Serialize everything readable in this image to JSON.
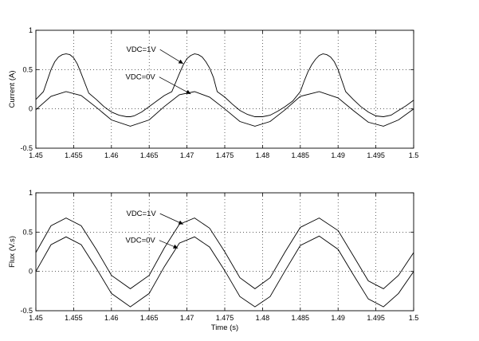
{
  "chart_data": [
    {
      "type": "line",
      "title": "",
      "xlabel": "",
      "ylabel": "Current (A)",
      "xlim": [
        1.45,
        1.5
      ],
      "ylim": [
        -0.5,
        1
      ],
      "grid": true,
      "xticks": [
        "1.45",
        "1.455",
        "1.46",
        "1.465",
        "1.47",
        "1.475",
        "1.48",
        "1.485",
        "1.49",
        "1.495",
        "1.5"
      ],
      "yticks": [
        "-0.5",
        "0",
        "0.5",
        "1"
      ],
      "series": [
        {
          "x": [
            1.45,
            1.451,
            1.452,
            1.4525,
            1.453,
            1.4535,
            1.454,
            1.4545,
            1.455,
            1.4555,
            1.456,
            1.457,
            1.458,
            1.459,
            1.46,
            1.461,
            1.462,
            1.4625,
            1.463,
            1.464,
            1.465,
            1.466,
            1.467,
            1.468,
            1.469,
            1.4695,
            1.47,
            1.4705,
            1.471,
            1.4715,
            1.472,
            1.4725,
            1.473,
            1.4735,
            1.474,
            1.475,
            1.476,
            1.477,
            1.478,
            1.479,
            1.48,
            1.481,
            1.482,
            1.483,
            1.484,
            1.485,
            1.4855,
            1.486,
            1.4865,
            1.487,
            1.4875,
            1.488,
            1.4885,
            1.489,
            1.4895,
            1.49,
            1.491,
            1.492,
            1.493,
            1.494,
            1.495,
            1.496,
            1.497,
            1.498,
            1.499,
            1.5
          ],
          "y": [
            0.12,
            0.22,
            0.5,
            0.6,
            0.66,
            0.69,
            0.7,
            0.69,
            0.65,
            0.57,
            0.45,
            0.2,
            0.12,
            0.03,
            -0.04,
            -0.08,
            -0.1,
            -0.1,
            -0.09,
            -0.04,
            0.03,
            0.1,
            0.17,
            0.22,
            0.45,
            0.56,
            0.64,
            0.68,
            0.7,
            0.69,
            0.66,
            0.6,
            0.52,
            0.4,
            0.22,
            0.15,
            0.06,
            -0.02,
            -0.07,
            -0.1,
            -0.1,
            -0.08,
            -0.03,
            0.03,
            0.1,
            0.22,
            0.35,
            0.47,
            0.56,
            0.63,
            0.68,
            0.7,
            0.69,
            0.66,
            0.6,
            0.5,
            0.22,
            0.12,
            0.03,
            -0.04,
            -0.09,
            -0.1,
            -0.08,
            -0.02,
            0.04,
            0.11
          ]
        },
        {
          "x": [
            1.45,
            1.452,
            1.454,
            1.456,
            1.458,
            1.46,
            1.4625,
            1.465,
            1.467,
            1.469,
            1.471,
            1.473,
            1.475,
            1.477,
            1.479,
            1.481,
            1.483,
            1.485,
            1.4875,
            1.49,
            1.492,
            1.494,
            1.496,
            1.498,
            1.5
          ],
          "y": [
            -0.01,
            0.16,
            0.22,
            0.17,
            0.02,
            -0.14,
            -0.22,
            -0.14,
            0.03,
            0.18,
            0.22,
            0.15,
            0.0,
            -0.16,
            -0.22,
            -0.16,
            -0.01,
            0.16,
            0.22,
            0.14,
            -0.02,
            -0.17,
            -0.22,
            -0.14,
            0.0
          ]
        }
      ],
      "annotations": [
        {
          "text": "VDC=1V",
          "x": 1.4659,
          "y": 0.755,
          "target": [
            1.4695,
            0.575
          ]
        },
        {
          "text": "VDC=0V",
          "x": 1.4658,
          "y": 0.405,
          "target": [
            1.4705,
            0.19
          ]
        }
      ]
    },
    {
      "type": "line",
      "title": "",
      "xlabel": "Time (s)",
      "ylabel": "Flux (V.s)",
      "xlim": [
        1.45,
        1.5
      ],
      "ylim": [
        -0.5,
        1
      ],
      "grid": true,
      "xticks": [
        "1.45",
        "1.455",
        "1.46",
        "1.465",
        "1.47",
        "1.475",
        "1.48",
        "1.485",
        "1.49",
        "1.495",
        "1.5"
      ],
      "yticks": [
        "-0.5",
        "0",
        "0.5",
        "1"
      ],
      "series": [
        {
          "x": [
            1.45,
            1.452,
            1.454,
            1.456,
            1.458,
            1.46,
            1.4625,
            1.465,
            1.467,
            1.469,
            1.471,
            1.473,
            1.475,
            1.477,
            1.479,
            1.481,
            1.483,
            1.485,
            1.4875,
            1.49,
            1.492,
            1.494,
            1.496,
            1.498,
            1.5
          ],
          "y": [
            0.24,
            0.58,
            0.68,
            0.58,
            0.28,
            -0.05,
            -0.22,
            -0.05,
            0.3,
            0.6,
            0.68,
            0.55,
            0.25,
            -0.08,
            -0.22,
            -0.08,
            0.25,
            0.56,
            0.68,
            0.52,
            0.2,
            -0.12,
            -0.22,
            -0.05,
            0.24
          ]
        },
        {
          "x": [
            1.45,
            1.452,
            1.454,
            1.456,
            1.458,
            1.46,
            1.4625,
            1.465,
            1.467,
            1.469,
            1.471,
            1.473,
            1.475,
            1.477,
            1.479,
            1.481,
            1.483,
            1.485,
            1.4875,
            1.49,
            1.492,
            1.494,
            1.496,
            1.498,
            1.5
          ],
          "y": [
            0.0,
            0.34,
            0.44,
            0.34,
            0.04,
            -0.28,
            -0.45,
            -0.28,
            0.06,
            0.36,
            0.44,
            0.31,
            0.01,
            -0.32,
            -0.45,
            -0.32,
            0.01,
            0.33,
            0.45,
            0.28,
            -0.04,
            -0.35,
            -0.45,
            -0.28,
            0.0
          ]
        }
      ],
      "annotations": [
        {
          "text": "VDC=1V",
          "x": 1.4659,
          "y": 0.735,
          "target": [
            1.4695,
            0.6
          ]
        },
        {
          "text": "VDC=0V",
          "x": 1.4658,
          "y": 0.395,
          "target": [
            1.4688,
            0.295
          ]
        }
      ]
    }
  ]
}
